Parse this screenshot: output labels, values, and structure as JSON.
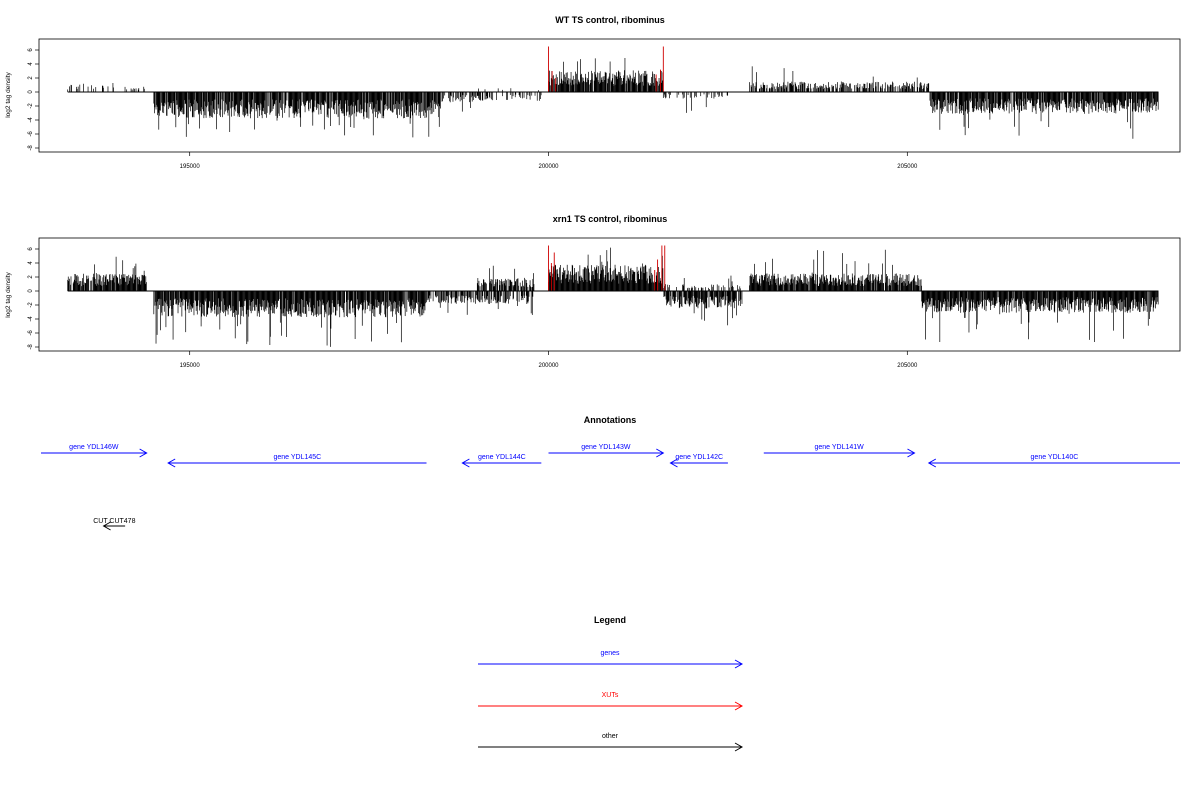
{
  "chart_data": [
    {
      "type": "bar",
      "title": "WT TS control, ribominus",
      "ylabel": "log2 tag density",
      "xlim": [
        192900,
        208800
      ],
      "ylim": [
        -8,
        7
      ],
      "x_ticks": [
        195000,
        200000,
        205000
      ],
      "y_ticks": [
        6,
        4,
        2,
        0,
        -2,
        -4,
        -6,
        -8
      ],
      "grid": false,
      "segments": [
        {
          "x_start": 193300,
          "x_end": 193800,
          "sign": 1,
          "typical": 1.0,
          "max": 3.5,
          "density": 0.3,
          "color": "#000000"
        },
        {
          "x_start": 193800,
          "x_end": 194400,
          "sign": 1,
          "typical": 0.8,
          "max": 2.2,
          "density": 0.15,
          "color": "#000000"
        },
        {
          "x_start": 194500,
          "x_end": 198500,
          "sign": -1,
          "typical": 3.0,
          "max": 6.5,
          "density": 0.9,
          "color": "#000000"
        },
        {
          "x_start": 198500,
          "x_end": 199000,
          "sign": -1,
          "typical": 1.2,
          "max": 3.0,
          "density": 0.3,
          "color": "#000000"
        },
        {
          "x_start": 199000,
          "x_end": 199900,
          "sign": -1,
          "typical": 1.0,
          "max": 2.5,
          "density": 0.35,
          "color": "#000000"
        },
        {
          "x_start": 199000,
          "x_end": 199900,
          "sign": 1,
          "typical": 0.5,
          "max": 1.0,
          "density": 0.05,
          "color": "#000000"
        },
        {
          "x_start": 200000,
          "x_end": 201600,
          "sign": 1,
          "typical": 2.5,
          "max": 5.0,
          "density": 0.9,
          "color": "#000000"
        },
        {
          "x_start": 201600,
          "x_end": 202500,
          "sign": -1,
          "typical": 0.8,
          "max": 3.5,
          "density": 0.25,
          "color": "#000000"
        },
        {
          "x_start": 202800,
          "x_end": 205300,
          "sign": 1,
          "typical": 1.2,
          "max": 4.0,
          "density": 0.6,
          "color": "#000000"
        },
        {
          "x_start": 205300,
          "x_end": 208500,
          "sign": -1,
          "typical": 2.5,
          "max": 7.0,
          "density": 0.9,
          "color": "#000000"
        }
      ],
      "highlight_bars": [
        {
          "x": 200000,
          "value": 6.5,
          "color": "#d00000"
        },
        {
          "x": 200050,
          "value": 3.0,
          "color": "#d00000"
        },
        {
          "x": 200100,
          "value": 2.0,
          "color": "#d00000"
        },
        {
          "x": 201500,
          "value": 2.5,
          "color": "#d00000"
        },
        {
          "x": 201560,
          "value": 3.2,
          "color": "#d00000"
        },
        {
          "x": 201600,
          "value": 6.5,
          "color": "#d00000"
        }
      ]
    },
    {
      "type": "bar",
      "title": "xrn1 TS control, ribominus",
      "ylabel": "log2 tag density",
      "xlim": [
        192900,
        208800
      ],
      "ylim": [
        -8,
        7
      ],
      "x_ticks": [
        195000,
        200000,
        205000
      ],
      "y_ticks": [
        6,
        4,
        2,
        0,
        -2,
        -4,
        -6,
        -8
      ],
      "grid": false,
      "segments": [
        {
          "x_start": 193300,
          "x_end": 194400,
          "sign": 1,
          "typical": 2.0,
          "max": 5.0,
          "density": 0.9,
          "color": "#000000"
        },
        {
          "x_start": 194500,
          "x_end": 198300,
          "sign": -1,
          "typical": 3.0,
          "max": 8.0,
          "density": 0.95,
          "color": "#000000"
        },
        {
          "x_start": 198300,
          "x_end": 199000,
          "sign": -1,
          "typical": 1.5,
          "max": 3.5,
          "density": 0.6,
          "color": "#000000"
        },
        {
          "x_start": 199000,
          "x_end": 199800,
          "sign": 1,
          "typical": 1.5,
          "max": 4.0,
          "density": 0.7,
          "color": "#000000"
        },
        {
          "x_start": 199000,
          "x_end": 199800,
          "sign": -1,
          "typical": 1.5,
          "max": 3.5,
          "density": 0.6,
          "color": "#000000"
        },
        {
          "x_start": 200000,
          "x_end": 201600,
          "sign": 1,
          "typical": 3.0,
          "max": 6.5,
          "density": 1.0,
          "color": "#000000"
        },
        {
          "x_start": 201600,
          "x_end": 202700,
          "sign": -1,
          "typical": 2.0,
          "max": 6.0,
          "density": 0.85,
          "color": "#000000"
        },
        {
          "x_start": 201600,
          "x_end": 202700,
          "sign": 1,
          "typical": 0.8,
          "max": 2.5,
          "density": 0.3,
          "color": "#000000"
        },
        {
          "x_start": 202800,
          "x_end": 205200,
          "sign": 1,
          "typical": 2.0,
          "max": 6.0,
          "density": 0.9,
          "color": "#000000"
        },
        {
          "x_start": 205200,
          "x_end": 208500,
          "sign": -1,
          "typical": 2.5,
          "max": 7.5,
          "density": 0.95,
          "color": "#000000"
        }
      ],
      "highlight_bars": [
        {
          "x": 200000,
          "value": 6.5,
          "color": "#d00000"
        },
        {
          "x": 200040,
          "value": 4.0,
          "color": "#d00000"
        },
        {
          "x": 200080,
          "value": 5.5,
          "color": "#d00000"
        },
        {
          "x": 201480,
          "value": 3.0,
          "color": "#d00000"
        },
        {
          "x": 201520,
          "value": 4.5,
          "color": "#d00000"
        },
        {
          "x": 201580,
          "value": 6.5,
          "color": "#d00000"
        },
        {
          "x": 201620,
          "value": 6.5,
          "color": "#d00000"
        }
      ]
    }
  ],
  "annotations": {
    "title": "Annotations",
    "genes": [
      {
        "label": "gene YDL146W",
        "start": 192900,
        "end": 194400,
        "strand": "+",
        "row": 0
      },
      {
        "label": "gene YDL145C",
        "start": 194700,
        "end": 198300,
        "strand": "-",
        "row": 1
      },
      {
        "label": "gene YDL144C",
        "start": 198800,
        "end": 199900,
        "strand": "-",
        "row": 1
      },
      {
        "label": "gene YDL143W",
        "start": 200000,
        "end": 201600,
        "strand": "+",
        "row": 0
      },
      {
        "label": "gene YDL142C",
        "start": 201700,
        "end": 202500,
        "strand": "-",
        "row": 1
      },
      {
        "label": "gene YDL141W",
        "start": 203000,
        "end": 205100,
        "strand": "+",
        "row": 0
      },
      {
        "label": "gene YDL140C",
        "start": 205300,
        "end": 208800,
        "strand": "-",
        "row": 1
      }
    ],
    "other": [
      {
        "label": "CUT CUT478",
        "start": 193800,
        "end": 194100,
        "strand": "-"
      }
    ]
  },
  "legend": {
    "title": "Legend",
    "items": [
      {
        "label": "genes",
        "color": "#0000ff"
      },
      {
        "label": "XUTs",
        "color": "#ff0000"
      },
      {
        "label": "other",
        "color": "#000000"
      }
    ]
  }
}
